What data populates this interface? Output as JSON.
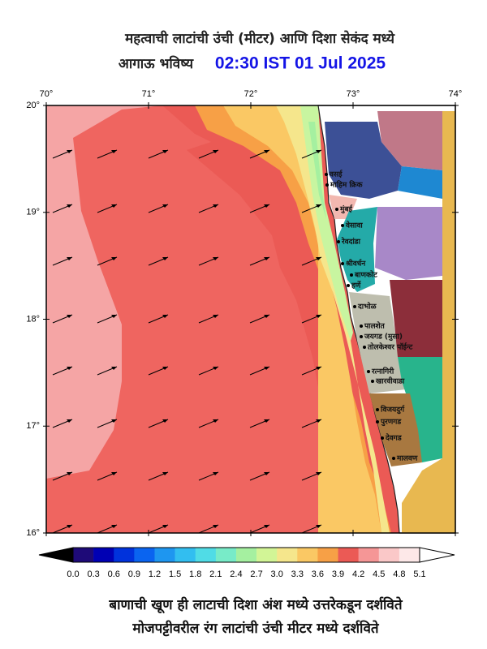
{
  "header": {
    "title": "महत्वाची लाटांची उंची (मीटर) आणि दिशा सेकंद मध्ये",
    "subtitle": "आगाऊ भविष्य",
    "time": "02:30 IST 01 Jul 2025"
  },
  "map": {
    "lon_labels": [
      "70°",
      "71°",
      "72°",
      "73°",
      "74°"
    ],
    "lat_labels": [
      "20°",
      "19°",
      "18°",
      "17°",
      "16°"
    ],
    "places": [
      "वसई",
      "माहिम क्रिक",
      "मुंबई",
      "वेसावा",
      "रेवदांडा",
      "श्रीवर्धन",
      "बाणकोट",
      "हर्णे",
      "दाभोळ",
      "पालशेत",
      "जयगड (मुसा)",
      "तोलकेश्वर पॉईन्ट",
      "रत्नागिरी",
      "खारवीवाडा",
      "विजयदुर्ग",
      "पुरणगड",
      "देवगड",
      "मालवण"
    ]
  },
  "colorbar": {
    "labels": [
      "0.0",
      "0.3",
      "0.6",
      "0.9",
      "1.2",
      "1.5",
      "1.8",
      "2.1",
      "2.4",
      "2.7",
      "3.0",
      "3.3",
      "3.6",
      "3.9",
      "4.2",
      "4.5",
      "4.8",
      "5.1"
    ],
    "colors": [
      "#1e0a78",
      "#0000b4",
      "#0032dc",
      "#0a64f0",
      "#1e96f0",
      "#32bef0",
      "#50dce6",
      "#78ebc8",
      "#a5f0a0",
      "#d2f596",
      "#f5e68c",
      "#fac864",
      "#f7a046",
      "#eb5a55",
      "#f59696",
      "#fac8c8",
      "#fde8e8"
    ]
  },
  "footer": {
    "line1": "बाणाची खूण ही लाटाची दिशा अंश मध्ये उत्तरेकडून दर्शविते",
    "line2": "मोजपट्टीवरील रंग लाटांची उंची मीटर मध्ये दर्शविते"
  }
}
